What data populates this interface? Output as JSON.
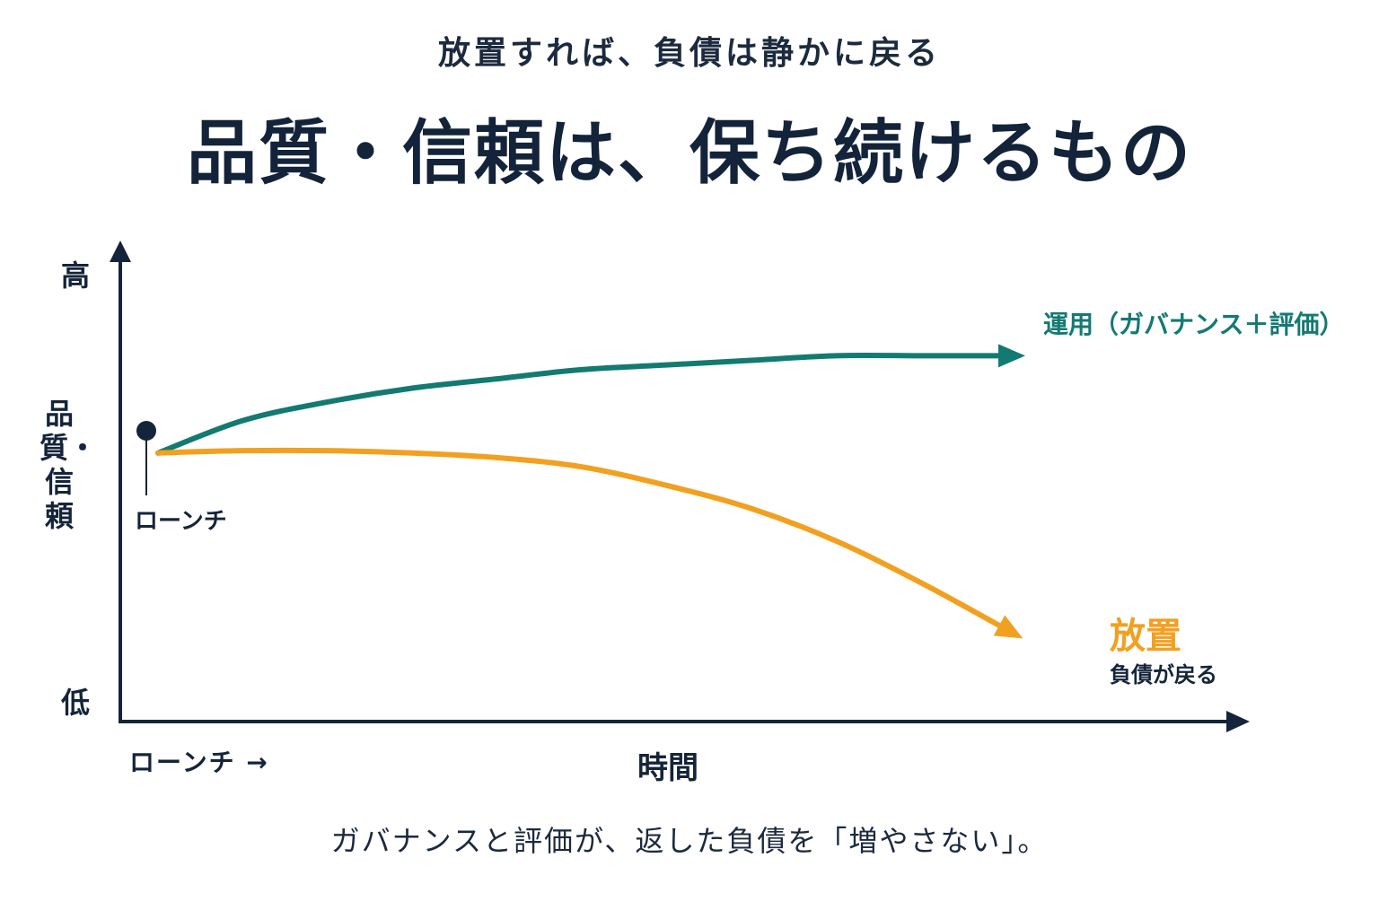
{
  "header": {
    "subtitle": "放置すれば、負債は静かに戻る",
    "title": "品質・信頼は、保ち続けるもの"
  },
  "footer": {
    "caption": "ガバナンスと評価が、返した負債を「増やさない」。"
  },
  "colors": {
    "axis": "#14243a",
    "operation": "#137a72",
    "neglect": "#f2a01f"
  },
  "chart_data": {
    "type": "line",
    "xlabel": "時間",
    "ylabel": "品質・信頼",
    "x_start_label": "ローンチ →",
    "y_high_label": "高",
    "y_low_label": "低",
    "launch_label": "ローンチ",
    "grid": false,
    "x": [
      0,
      10,
      20,
      30,
      40,
      50,
      60,
      70,
      80,
      90,
      100
    ],
    "series": [
      {
        "name": "運用（ガバナンス＋評価）",
        "color": "#137a72",
        "values": [
          58,
          65,
          69,
          72,
          74,
          76,
          77,
          78,
          79,
          79,
          79
        ]
      },
      {
        "name": "放置",
        "sublabel": "負債が戻る",
        "color": "#f2a01f",
        "values": [
          58,
          58.5,
          58.5,
          58,
          57,
          55,
          51,
          46,
          39,
          30,
          20
        ]
      }
    ]
  }
}
